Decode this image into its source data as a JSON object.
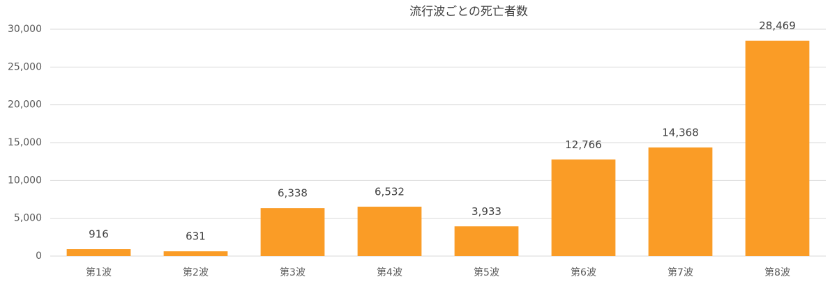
{
  "chart_data": {
    "type": "bar",
    "title": "流行波ごとの死亡者数",
    "categories": [
      "第1波",
      "第2波",
      "第3波",
      "第4波",
      "第5波",
      "第6波",
      "第7波",
      "第8波"
    ],
    "values": [
      916,
      631,
      6338,
      6532,
      3933,
      12766,
      14368,
      28469
    ],
    "value_labels": [
      "916",
      "631",
      "6,338",
      "6,532",
      "3,933",
      "12,766",
      "14,368",
      "28,469"
    ],
    "color": "#fa9c26",
    "ylim": [
      0,
      30000
    ],
    "yticks": [
      0,
      {
        "value": 5000,
        "label": "5,000"
      },
      {
        "value": 10000,
        "label": "10,000"
      },
      {
        "value": 15000,
        "label": "15,000"
      },
      {
        "value": 20000,
        "label": "20,000"
      },
      {
        "value": 25000,
        "label": "25,000"
      },
      {
        "value": 30000,
        "label": "30,000"
      }
    ],
    "grid": true
  }
}
